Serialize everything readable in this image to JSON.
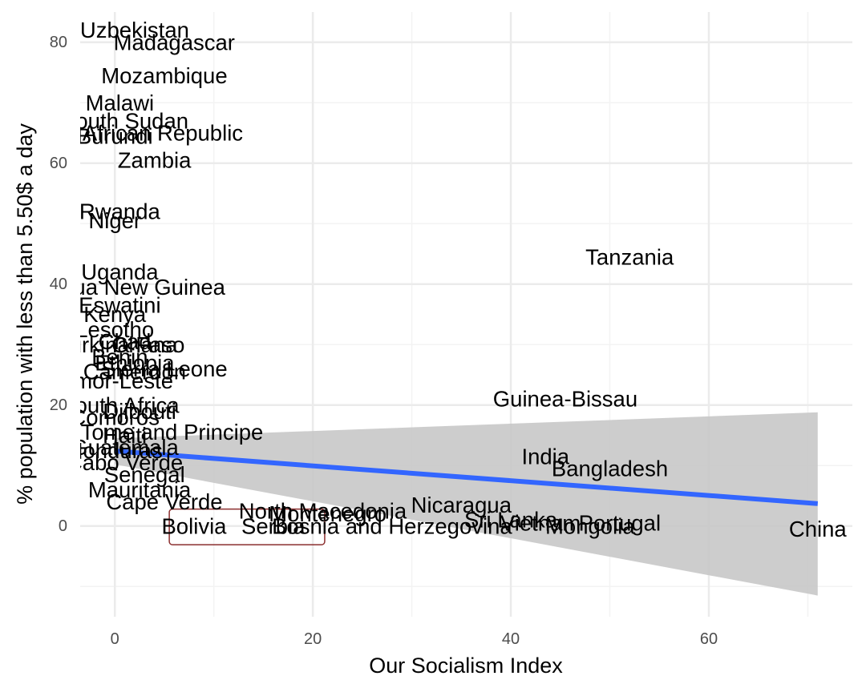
{
  "chart_data": {
    "type": "scatter",
    "title": "",
    "xlabel": "Our Socialism Index",
    "ylabel": "% population with less than 5.50$ a day",
    "xlim": [
      -3.5,
      74.5
    ],
    "ylim": [
      -15,
      85
    ],
    "x_ticks": [
      "0",
      "20",
      "40",
      "60"
    ],
    "y_ticks": [
      "0",
      "20",
      "40",
      "60",
      "80"
    ],
    "grid": true,
    "legend": "none",
    "colors": {
      "grid_major": "#ebebeb",
      "grid_minor": "#f3f3f3",
      "trend_line": "#3366ff",
      "confidence_band": "#c8c8c8",
      "label_text": "#000000",
      "highlight_box": "#8b2e2e"
    },
    "trend": {
      "method": "linear",
      "x_range": [
        0,
        71
      ],
      "y_start": 12.4,
      "y_end": 3.7,
      "ci_lower_start": 10.2,
      "ci_lower_end": -11.5,
      "ci_upper_start": 14.5,
      "ci_upper_end": 18.8
    },
    "points": [
      {
        "label": "Uzbekistan",
        "x": 2,
        "y": 82
      },
      {
        "label": "Madagascar",
        "x": 6,
        "y": 80
      },
      {
        "label": "Mozambique",
        "x": 5,
        "y": 74.5
      },
      {
        "label": "Malawi",
        "x": 0.5,
        "y": 70
      },
      {
        "label": "South Sudan",
        "x": 1,
        "y": 67
      },
      {
        "label": "Central African Republic",
        "x": 1,
        "y": 65
      },
      {
        "label": "Burundi",
        "x": 0,
        "y": 64.5
      },
      {
        "label": "Zambia",
        "x": 4,
        "y": 60.5
      },
      {
        "label": "Rwanda",
        "x": 0.5,
        "y": 52
      },
      {
        "label": "Niger",
        "x": 0,
        "y": 50.5
      },
      {
        "label": "Tanzania",
        "x": 52,
        "y": 44.5
      },
      {
        "label": "Uganda",
        "x": 0.5,
        "y": 42
      },
      {
        "label": "Papua New Guinea",
        "x": 1.5,
        "y": 39.5
      },
      {
        "label": "Eswatini",
        "x": 0.5,
        "y": 36.5
      },
      {
        "label": "Kenya",
        "x": 0,
        "y": 35
      },
      {
        "label": "Lesotho",
        "x": 0,
        "y": 32.5
      },
      {
        "label": "Chad",
        "x": 1,
        "y": 30.5
      },
      {
        "label": "Burkina Faso",
        "x": 0.5,
        "y": 30
      },
      {
        "label": "Ghana",
        "x": 3,
        "y": 30
      },
      {
        "label": "Benin",
        "x": 0.5,
        "y": 28
      },
      {
        "label": "Ethiopia",
        "x": 2,
        "y": 27
      },
      {
        "label": "Sierra Leone",
        "x": 5,
        "y": 26
      },
      {
        "label": "Cameroon",
        "x": 2,
        "y": 25.5
      },
      {
        "label": "Timor-Leste",
        "x": 0,
        "y": 24
      },
      {
        "label": "Guinea-Bissau",
        "x": 45.5,
        "y": 21
      },
      {
        "label": "South Africa",
        "x": 0.5,
        "y": 20
      },
      {
        "label": "Djibouti",
        "x": 2.5,
        "y": 19
      },
      {
        "label": "Comoros",
        "x": 0,
        "y": 18
      },
      {
        "label": "Sao Tome and Principe",
        "x": 3.5,
        "y": 15.5
      },
      {
        "label": "Haiti",
        "x": 1,
        "y": 15
      },
      {
        "label": "Guatemala",
        "x": 1,
        "y": 13
      },
      {
        "label": "Honduras",
        "x": 0,
        "y": 12.5
      },
      {
        "label": "India",
        "x": 43.5,
        "y": 11.5
      },
      {
        "label": "Cabo Verde",
        "x": 1,
        "y": 10.5
      },
      {
        "label": "Bangladesh",
        "x": 50,
        "y": 9.5
      },
      {
        "label": "Senegal",
        "x": 3,
        "y": 8.5
      },
      {
        "label": "Mauritania",
        "x": 2.5,
        "y": 6
      },
      {
        "label": "Cape Verde",
        "x": 5,
        "y": 4
      },
      {
        "label": "Nicaragua",
        "x": 35,
        "y": 3.5
      },
      {
        "label": "North Macedonia",
        "x": 21,
        "y": 2.5
      },
      {
        "label": "Montenegro",
        "x": 21.5,
        "y": 2
      },
      {
        "label": "Sri Lanka",
        "x": 40,
        "y": 1
      },
      {
        "label": "Vietnam",
        "x": 43,
        "y": 0.5
      },
      {
        "label": "Portugal",
        "x": 51,
        "y": 0.5
      },
      {
        "label": "Mongolia",
        "x": 48,
        "y": 0
      },
      {
        "label": "Bosnia and Herzegovina",
        "x": 28,
        "y": 0
      },
      {
        "label": "Serbia",
        "x": 16,
        "y": 0
      },
      {
        "label": "Bolivia",
        "x": 8,
        "y": 0
      },
      {
        "label": "China",
        "x": 71,
        "y": -0.5
      }
    ]
  }
}
